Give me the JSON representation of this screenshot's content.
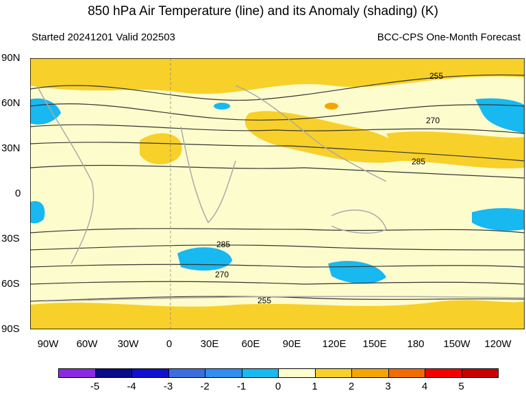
{
  "title": "850 hPa Air Temperature (line) and its Anomaly (shading) (K)",
  "subtitle_left": "Started 20241201  Valid 202503",
  "subtitle_right": "BCC-CPS One-Month Forecast",
  "lat_labels": [
    "90N",
    "60N",
    "30N",
    "0",
    "30S",
    "60S",
    "90S"
  ],
  "lon_labels": [
    "90W",
    "60W",
    "30W",
    "0",
    "30E",
    "60E",
    "90E",
    "120E",
    "150E",
    "180",
    "150W",
    "120W"
  ],
  "contour_labels": [
    "255",
    "270",
    "285",
    "285",
    "270",
    "255"
  ],
  "colorbar": {
    "labels": [
      "-5",
      "-4",
      "-3",
      "-2",
      "-1",
      "0",
      "1",
      "2",
      "3",
      "4",
      "5"
    ],
    "colors": [
      "#8a2be2",
      "#0a0a8c",
      "#1010d0",
      "#3a6ee0",
      "#2f8ef0",
      "#18b8f0",
      "#fdfccd",
      "#f8d02a",
      "#f5a500",
      "#f56a00",
      "#f50000",
      "#c80000"
    ]
  },
  "chart_data": {
    "type": "map",
    "variable": "850 hPa Air Temperature (line) and its Anomaly (shading) (K)",
    "start": "20241201",
    "valid": "202503",
    "contour_levels_labeled": [
      255,
      270,
      285
    ],
    "anomaly_levels": [
      -5,
      -4,
      -3,
      -2,
      -1,
      0,
      1,
      2,
      3,
      4,
      5
    ]
  }
}
